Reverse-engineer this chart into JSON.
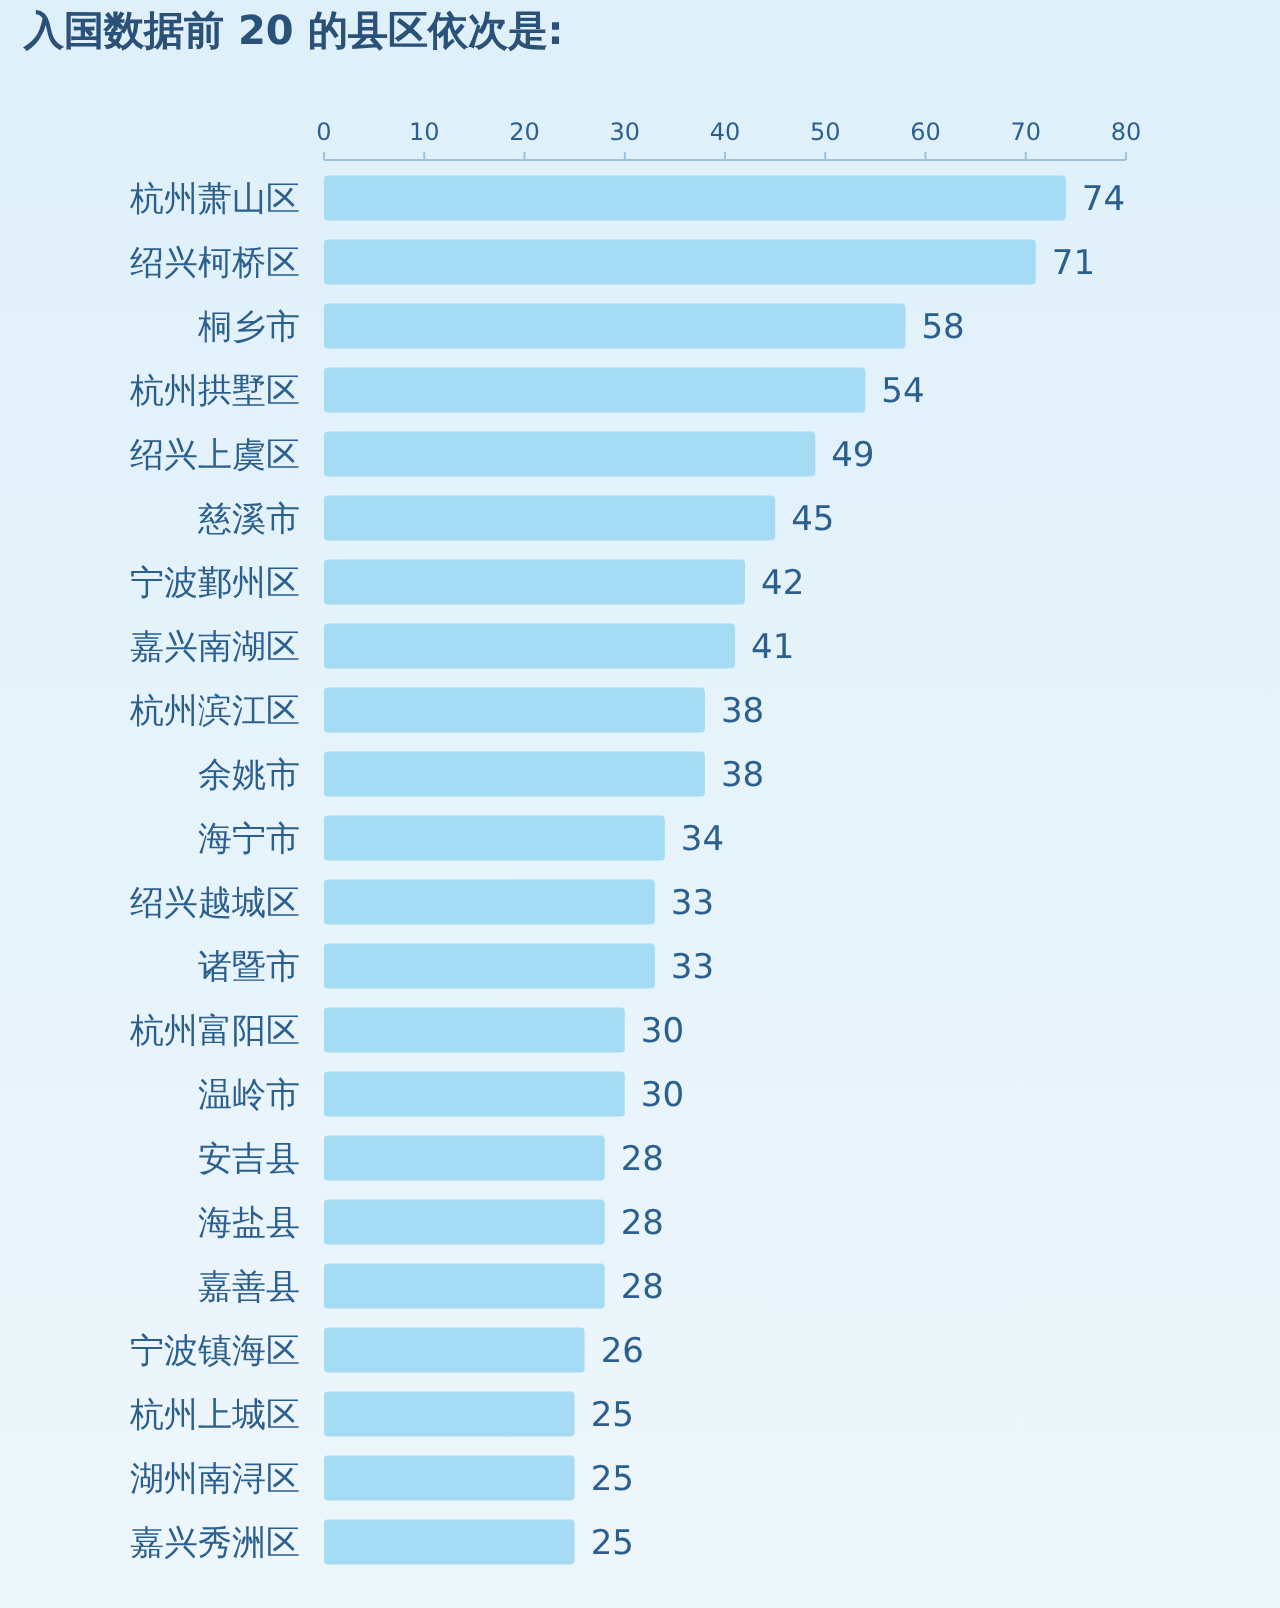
{
  "chart_data": {
    "type": "bar",
    "orientation": "horizontal",
    "title": "入国数据前 20 的县区依次是:",
    "categories": [
      "杭州萧山区",
      "绍兴柯桥区",
      "桐乡市",
      "杭州拱墅区",
      "绍兴上虞区",
      "慈溪市",
      "宁波鄞州区",
      "嘉兴南湖区",
      "杭州滨江区",
      "余姚市",
      "海宁市",
      "绍兴越城区",
      "诸暨市",
      "杭州富阳区",
      "温岭市",
      "安吉县",
      "海盐县",
      "嘉善县",
      "宁波镇海区",
      "杭州上城区",
      "湖州南浔区",
      "嘉兴秀洲区"
    ],
    "values": [
      74,
      71,
      58,
      54,
      49,
      45,
      42,
      41,
      38,
      38,
      34,
      33,
      33,
      30,
      30,
      28,
      28,
      28,
      26,
      25,
      25,
      25
    ],
    "color": "#a6dcf3",
    "xlim": [
      0,
      80
    ],
    "xticks": [
      0,
      10,
      20,
      30,
      40,
      50,
      60,
      70,
      80
    ],
    "grid": false,
    "data_labels": true
  }
}
